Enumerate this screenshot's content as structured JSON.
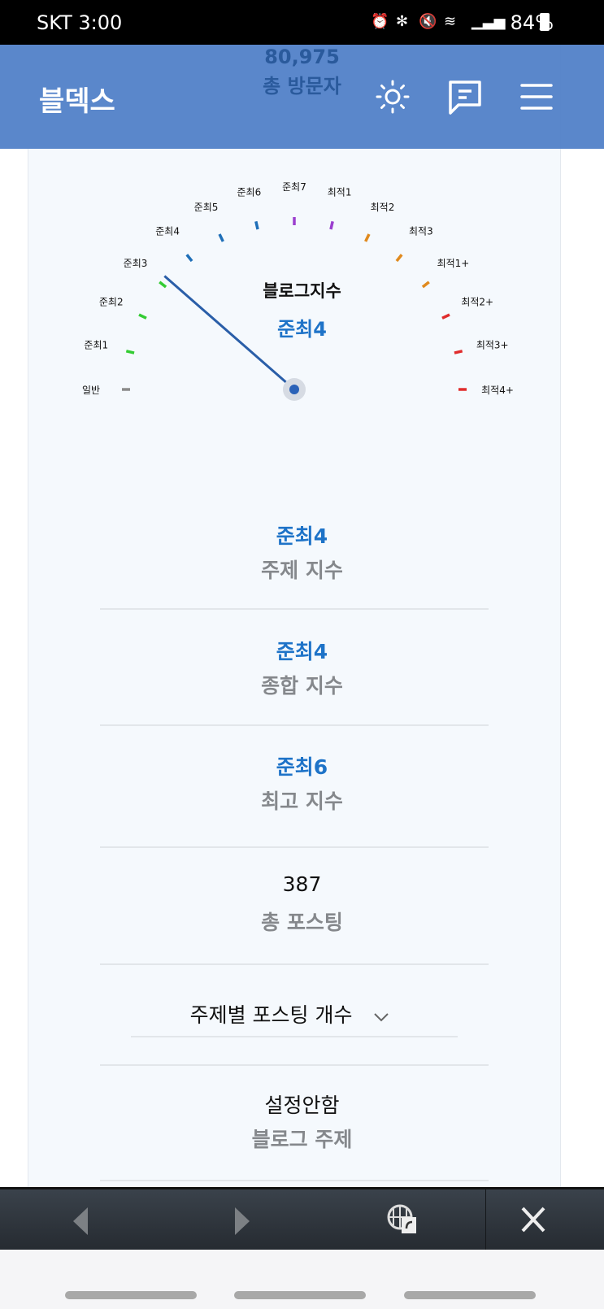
{
  "status_bar": {
    "carrier_time": "SKT 3:00",
    "battery": "84%",
    "icons": [
      "alarm-icon",
      "bluetooth-icon",
      "mute-icon",
      "wifi-icon",
      "signal-icon",
      "battery-charging-icon"
    ]
  },
  "behind_header": {
    "visitors": "80,975",
    "visitors_label": "총 방문자"
  },
  "header": {
    "title": "블덱스",
    "icons": [
      "brightness-icon",
      "chat-icon",
      "menu-icon"
    ],
    "color": "#5080c8"
  },
  "gauge": {
    "title": "블로그지수",
    "value": "준최4",
    "value_color": "#1e73c8",
    "needle_color": "#2a5ea8",
    "levels": [
      {
        "label": "일반",
        "color": "#8a8a8a"
      },
      {
        "label": "준최1",
        "color": "#33cc33"
      },
      {
        "label": "준최2",
        "color": "#33cc33"
      },
      {
        "label": "준최3",
        "color": "#33cc33"
      },
      {
        "label": "준최4",
        "color": "#1f6fb8"
      },
      {
        "label": "준최5",
        "color": "#1f6fb8"
      },
      {
        "label": "준최6",
        "color": "#1f6fb8"
      },
      {
        "label": "준최7",
        "color": "#9b3fcf"
      },
      {
        "label": "최적1",
        "color": "#9b3fcf"
      },
      {
        "label": "최적2",
        "color": "#e08a1e"
      },
      {
        "label": "최적3",
        "color": "#e08a1e"
      },
      {
        "label": "최적1+",
        "color": "#e08a1e"
      },
      {
        "label": "최적2+",
        "color": "#e02c2c"
      },
      {
        "label": "최적3+",
        "color": "#e02c2c"
      },
      {
        "label": "최적4+",
        "color": "#e02c2c"
      }
    ]
  },
  "stats": [
    {
      "value": "준최4",
      "label": "주제 지수",
      "highlight": true
    },
    {
      "value": "준최4",
      "label": "종합 지수",
      "highlight": true
    },
    {
      "value": "준최6",
      "label": "최고 지수",
      "highlight": true
    },
    {
      "value": "387",
      "label": "총 포스팅",
      "highlight": false
    }
  ],
  "dropdown": {
    "label": "주제별 포스팅 개수",
    "icon": "chevron-down-icon"
  },
  "blog_topic": {
    "value": "설정안함",
    "label": "블로그 주제"
  },
  "bottom_bar": {
    "icons": [
      "back-icon",
      "forward-icon",
      "open-in-browser-icon",
      "close-icon"
    ]
  }
}
